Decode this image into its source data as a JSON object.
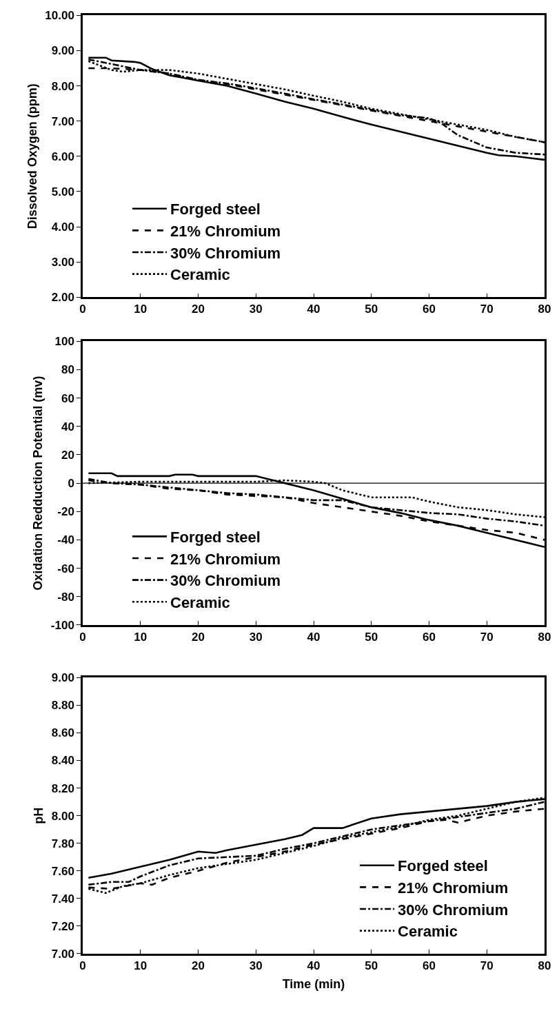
{
  "chart_data": [
    {
      "type": "line",
      "ylabel": "Dissolved Oxygen (ppm)",
      "xlim": [
        0,
        80
      ],
      "xticks": [
        0,
        10,
        20,
        30,
        40,
        50,
        60,
        70,
        80
      ],
      "ylim": [
        2,
        10
      ],
      "yticks": [
        {
          "value": 2,
          "label": "2.00"
        },
        {
          "value": 3,
          "label": "3.00"
        },
        {
          "value": 4,
          "label": "4.00"
        },
        {
          "value": 5,
          "label": "5.00"
        },
        {
          "value": 6,
          "label": "6.00"
        },
        {
          "value": 7,
          "label": "7.00"
        },
        {
          "value": 8,
          "label": "8.00"
        },
        {
          "value": 9,
          "label": "9.00"
        },
        {
          "value": 10,
          "label": "10.00"
        }
      ],
      "grid": false,
      "legend": "bottom left",
      "marker": "none",
      "series": [
        {
          "name": "Forged steel",
          "color": "#000000",
          "line_style": "solid",
          "x": [
            1,
            4,
            5,
            9,
            10,
            12,
            15,
            20,
            25,
            30,
            35,
            40,
            45,
            50,
            55,
            60,
            65,
            70,
            72,
            75,
            80
          ],
          "values": [
            8.8,
            8.8,
            8.72,
            8.68,
            8.65,
            8.48,
            8.3,
            8.15,
            8.0,
            7.78,
            7.55,
            7.35,
            7.12,
            6.9,
            6.7,
            6.5,
            6.3,
            6.1,
            6.03,
            6.0,
            5.9
          ]
        },
        {
          "name": "21% Chromium",
          "color": "#000000",
          "line_style": "dashed",
          "x": [
            1,
            5,
            10,
            15,
            20,
            25,
            30,
            35,
            40,
            45,
            50,
            55,
            60,
            65,
            70,
            75,
            80
          ],
          "values": [
            8.5,
            8.5,
            8.45,
            8.35,
            8.17,
            8.05,
            7.9,
            7.75,
            7.6,
            7.45,
            7.3,
            7.15,
            7.0,
            6.85,
            6.7,
            6.55,
            6.4
          ]
        },
        {
          "name": "30% Chromium",
          "color": "#000000",
          "line_style": "dashdot",
          "x": [
            1,
            5,
            10,
            15,
            20,
            25,
            30,
            35,
            40,
            45,
            50,
            55,
            60,
            62,
            65,
            70,
            75,
            80
          ],
          "values": [
            8.75,
            8.62,
            8.45,
            8.35,
            8.17,
            8.07,
            7.93,
            7.78,
            7.62,
            7.47,
            7.32,
            7.17,
            7.08,
            6.95,
            6.6,
            6.25,
            6.1,
            6.05
          ]
        },
        {
          "name": "Ceramic",
          "color": "#000000",
          "line_style": "dotted",
          "x": [
            1,
            5,
            7,
            10,
            15,
            20,
            25,
            30,
            35,
            40,
            45,
            50,
            55,
            60,
            65,
            70,
            75,
            80
          ],
          "values": [
            8.7,
            8.45,
            8.4,
            8.45,
            8.45,
            8.35,
            8.2,
            8.05,
            7.9,
            7.72,
            7.55,
            7.35,
            7.2,
            7.05,
            6.9,
            6.75,
            6.55,
            6.4
          ]
        }
      ]
    },
    {
      "type": "line",
      "ylabel": "Oxidation Redduction Potential (mv)",
      "xlim": [
        0,
        80
      ],
      "xticks": [
        0,
        10,
        20,
        30,
        40,
        50,
        60,
        70,
        80
      ],
      "ylim": [
        -100,
        100
      ],
      "yticks": [
        -100,
        -80,
        -60,
        -40,
        -20,
        0,
        20,
        40,
        60,
        80,
        100
      ],
      "grid": false,
      "legend": "bottom left",
      "marker": "none",
      "ref_lines": [
        {
          "axis": "y",
          "value": 0,
          "color": "#000000",
          "line_style": "solid"
        }
      ],
      "series": [
        {
          "name": "Forged steel",
          "color": "#000000",
          "line_style": "solid",
          "x": [
            1,
            5,
            6,
            15,
            16,
            19,
            20,
            30,
            32,
            35,
            40,
            45,
            50,
            55,
            60,
            65,
            70,
            75,
            80
          ],
          "values": [
            7,
            7,
            5,
            5,
            6,
            6,
            5,
            5,
            3,
            0,
            -5,
            -11,
            -17,
            -21,
            -26,
            -30,
            -35,
            -40,
            -45
          ]
        },
        {
          "name": "21% Chromium",
          "color": "#000000",
          "line_style": "dashed",
          "x": [
            1,
            5,
            10,
            15,
            20,
            25,
            30,
            35,
            40,
            45,
            50,
            55,
            60,
            65,
            70,
            75,
            78,
            80
          ],
          "values": [
            2,
            0,
            -1,
            -4,
            -5,
            -8,
            -9,
            -10,
            -14,
            -17,
            -20,
            -23,
            -27,
            -30,
            -33,
            -35,
            -38,
            -40
          ]
        },
        {
          "name": "30% Chromium",
          "color": "#000000",
          "line_style": "dashdot",
          "x": [
            1,
            5,
            10,
            15,
            20,
            25,
            30,
            35,
            40,
            45,
            50,
            55,
            60,
            65,
            70,
            75,
            80
          ],
          "values": [
            3,
            0,
            -1,
            -3,
            -5,
            -7,
            -8,
            -10,
            -12,
            -12,
            -17,
            -19,
            -21,
            -22,
            -25,
            -27,
            -30
          ]
        },
        {
          "name": "Ceramic",
          "color": "#000000",
          "line_style": "dotted",
          "x": [
            1,
            10,
            20,
            30,
            35,
            40,
            42,
            45,
            50,
            57,
            60,
            65,
            70,
            75,
            80
          ],
          "values": [
            0,
            1,
            1,
            1,
            2,
            1,
            0,
            -5,
            -10,
            -10,
            -13,
            -17,
            -19,
            -22,
            -24
          ]
        }
      ]
    },
    {
      "type": "line",
      "xlabel": "Time (min)",
      "ylabel": "pH",
      "xlim": [
        0,
        80
      ],
      "xticks": [
        0,
        10,
        20,
        30,
        40,
        50,
        60,
        70,
        80
      ],
      "ylim": [
        7,
        9
      ],
      "yticks": [
        {
          "value": 7,
          "label": "7.00"
        },
        {
          "value": 7.2,
          "label": "7.20"
        },
        {
          "value": 7.4,
          "label": "7.40"
        },
        {
          "value": 7.6,
          "label": "7.60"
        },
        {
          "value": 7.8,
          "label": "7.80"
        },
        {
          "value": 8,
          "label": "8.00"
        },
        {
          "value": 8.2,
          "label": "8.20"
        },
        {
          "value": 8.4,
          "label": "8.40"
        },
        {
          "value": 8.6,
          "label": "8.60"
        },
        {
          "value": 8.8,
          "label": "8.80"
        },
        {
          "value": 9,
          "label": "9.00"
        }
      ],
      "grid": false,
      "legend": "bottom right",
      "marker": "none",
      "series": [
        {
          "name": "Forged steel",
          "color": "#000000",
          "line_style": "solid",
          "x": [
            1,
            5,
            10,
            15,
            20,
            23,
            25,
            30,
            35,
            38,
            40,
            45,
            50,
            55,
            60,
            65,
            70,
            75,
            80
          ],
          "values": [
            7.55,
            7.58,
            7.63,
            7.68,
            7.74,
            7.73,
            7.75,
            7.79,
            7.83,
            7.86,
            7.91,
            7.91,
            7.98,
            8.01,
            8.03,
            8.05,
            8.07,
            8.1,
            8.12
          ]
        },
        {
          "name": "21% Chromium",
          "color": "#000000",
          "line_style": "dashed",
          "x": [
            1,
            5,
            10,
            12,
            15,
            20,
            25,
            30,
            35,
            40,
            45,
            50,
            55,
            60,
            63,
            65,
            70,
            75,
            80
          ],
          "values": [
            7.48,
            7.47,
            7.51,
            7.5,
            7.55,
            7.6,
            7.66,
            7.7,
            7.74,
            7.79,
            7.83,
            7.87,
            7.91,
            7.96,
            7.97,
            7.95,
            8.0,
            8.03,
            8.05
          ]
        },
        {
          "name": "30% Chromium",
          "color": "#000000",
          "line_style": "dashdot",
          "x": [
            1,
            5,
            8,
            10,
            15,
            20,
            25,
            30,
            35,
            40,
            45,
            50,
            55,
            60,
            65,
            70,
            75,
            80
          ],
          "values": [
            7.5,
            7.52,
            7.52,
            7.56,
            7.64,
            7.69,
            7.7,
            7.71,
            7.76,
            7.8,
            7.85,
            7.9,
            7.93,
            7.96,
            7.99,
            8.02,
            8.05,
            8.1
          ]
        },
        {
          "name": "Ceramic",
          "color": "#000000",
          "line_style": "dotted",
          "x": [
            1,
            4,
            7,
            10,
            15,
            20,
            25,
            30,
            35,
            40,
            45,
            50,
            55,
            60,
            65,
            70,
            75,
            80
          ],
          "values": [
            7.47,
            7.44,
            7.49,
            7.51,
            7.57,
            7.62,
            7.65,
            7.68,
            7.73,
            7.78,
            7.84,
            7.88,
            7.92,
            7.97,
            8.0,
            8.05,
            8.1,
            8.13
          ]
        }
      ]
    }
  ]
}
